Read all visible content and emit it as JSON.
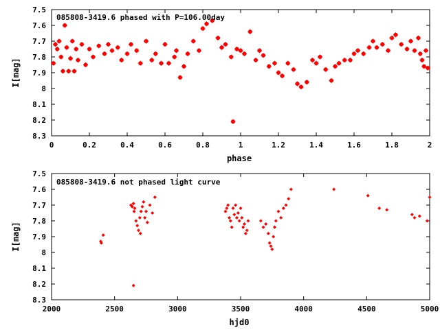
{
  "chart_data": [
    {
      "type": "scatter",
      "title": "085808-3419.6 phased with P=106.00day",
      "xlabel": "phase",
      "ylabel": "I[mag]",
      "xlim": [
        0,
        2
      ],
      "ylim": [
        7.5,
        8.3
      ],
      "y_inverted": true,
      "x_ticks": [
        0,
        0.2,
        0.4,
        0.6,
        0.8,
        1,
        1.2,
        1.4,
        1.6,
        1.8,
        2
      ],
      "x_tick_labels": [
        "0",
        "0.2",
        "0.4",
        "0.6",
        "0.8",
        "1",
        "1.2",
        "1.4",
        "1.6",
        "1.8",
        "2"
      ],
      "y_ticks": [
        7.5,
        7.6,
        7.7,
        7.8,
        7.9,
        8.0,
        8.1,
        8.2,
        8.3
      ],
      "y_tick_labels": [
        "7.5",
        "7.6",
        "7.7",
        "7.8",
        "7.9",
        "8",
        "8.1",
        "8.2",
        "8.3"
      ],
      "marker_color": "#ff0000",
      "series": [
        {
          "x": [
            0.01,
            0.02,
            0.03,
            0.04,
            0.05,
            0.06,
            0.07,
            0.08,
            0.09,
            0.1,
            0.11,
            0.12,
            0.13,
            0.14,
            0.16,
            0.18,
            0.2,
            0.22,
            0.25,
            0.28,
            0.3,
            0.32,
            0.35,
            0.37,
            0.4,
            0.42,
            0.45,
            0.47,
            0.5,
            0.53,
            0.55,
            0.58,
            0.6,
            0.62,
            0.65,
            0.66,
            0.68,
            0.7,
            0.72,
            0.75,
            0.78,
            0.8,
            0.82,
            0.85,
            0.88,
            0.9,
            0.92,
            0.95,
            0.96,
            0.98,
            1.0,
            1.02,
            1.05,
            1.08,
            1.1,
            1.12,
            1.15,
            1.18,
            1.2,
            1.22,
            1.25,
            1.28,
            1.3,
            1.32,
            1.35,
            1.38,
            1.4,
            1.42,
            1.45,
            1.48,
            1.5,
            1.52,
            1.55,
            1.58,
            1.6,
            1.62,
            1.65,
            1.68,
            1.7,
            1.72,
            1.75,
            1.78,
            1.8,
            1.82,
            1.85,
            1.88,
            1.9,
            1.92,
            1.94,
            1.95,
            1.96,
            1.97,
            1.98,
            1.99
          ],
          "y": [
            7.84,
            7.72,
            7.75,
            7.7,
            7.8,
            7.89,
            7.6,
            7.74,
            7.89,
            7.81,
            7.7,
            7.89,
            7.75,
            7.82,
            7.72,
            7.85,
            7.75,
            7.8,
            7.73,
            7.78,
            7.72,
            7.76,
            7.74,
            7.82,
            7.78,
            7.72,
            7.76,
            7.84,
            7.7,
            7.82,
            7.78,
            7.84,
            7.72,
            7.84,
            7.8,
            7.76,
            7.93,
            7.86,
            7.78,
            7.7,
            7.76,
            7.62,
            7.59,
            7.57,
            7.68,
            7.74,
            7.72,
            7.8,
            8.21,
            7.75,
            7.76,
            7.78,
            7.64,
            7.82,
            7.76,
            7.79,
            7.86,
            7.84,
            7.9,
            7.92,
            7.84,
            7.88,
            7.97,
            7.99,
            7.96,
            7.82,
            7.84,
            7.8,
            7.88,
            7.95,
            7.86,
            7.84,
            7.82,
            7.82,
            7.78,
            7.76,
            7.78,
            7.74,
            7.7,
            7.74,
            7.72,
            7.76,
            7.68,
            7.66,
            7.72,
            7.75,
            7.7,
            7.76,
            7.68,
            7.78,
            7.82,
            7.86,
            7.76,
            7.87
          ]
        }
      ]
    },
    {
      "type": "scatter",
      "title": "085808-3419.6 not phased light curve",
      "xlabel": "hjd0",
      "ylabel": "I[mag]",
      "xlim": [
        2000,
        5000
      ],
      "ylim": [
        7.5,
        8.3
      ],
      "y_inverted": true,
      "x_ticks": [
        2000,
        2500,
        3000,
        3500,
        4000,
        4500,
        5000
      ],
      "x_tick_labels": [
        "2000",
        "2500",
        "3000",
        "3500",
        "4000",
        "4500",
        "5000"
      ],
      "y_ticks": [
        7.5,
        7.6,
        7.7,
        7.8,
        7.9,
        8.0,
        8.1,
        8.2,
        8.3
      ],
      "y_tick_labels": [
        "7.5",
        "7.6",
        "7.7",
        "7.8",
        "7.9",
        "8",
        "8.1",
        "8.2",
        "8.3"
      ],
      "marker_color": "#ff0000",
      "series": [
        {
          "x": [
            2390,
            2395,
            2410,
            2630,
            2640,
            2650,
            2655,
            2660,
            2670,
            2680,
            2690,
            2700,
            2705,
            2710,
            2720,
            2730,
            2740,
            2750,
            2760,
            2780,
            2800,
            2820,
            2650,
            3380,
            3390,
            3400,
            3410,
            3420,
            3430,
            3440,
            3450,
            3460,
            3470,
            3480,
            3490,
            3500,
            3510,
            3520,
            3530,
            3540,
            3550,
            3560,
            3660,
            3680,
            3700,
            3720,
            3730,
            3740,
            3750,
            3760,
            3770,
            3780,
            3800,
            3820,
            3840,
            3860,
            3880,
            3900,
            4240,
            4510,
            4600,
            4660,
            4860,
            4880,
            4920,
            4980,
            5000
          ],
          "y": [
            7.93,
            7.94,
            7.89,
            7.7,
            7.71,
            7.69,
            7.74,
            7.72,
            7.8,
            7.83,
            7.86,
            7.78,
            7.88,
            7.74,
            7.71,
            7.68,
            7.78,
            7.74,
            7.81,
            7.7,
            7.75,
            7.65,
            8.21,
            7.74,
            7.72,
            7.7,
            7.78,
            7.8,
            7.84,
            7.72,
            7.76,
            7.7,
            7.78,
            7.75,
            7.8,
            7.72,
            7.78,
            7.84,
            7.82,
            7.88,
            7.86,
            7.8,
            7.8,
            7.84,
            7.82,
            7.88,
            7.94,
            7.96,
            7.98,
            7.9,
            7.84,
            7.8,
            7.74,
            7.78,
            7.72,
            7.7,
            7.66,
            7.6,
            7.6,
            7.64,
            7.72,
            7.73,
            7.76,
            7.78,
            7.77,
            7.8,
            7.65
          ]
        }
      ]
    }
  ]
}
